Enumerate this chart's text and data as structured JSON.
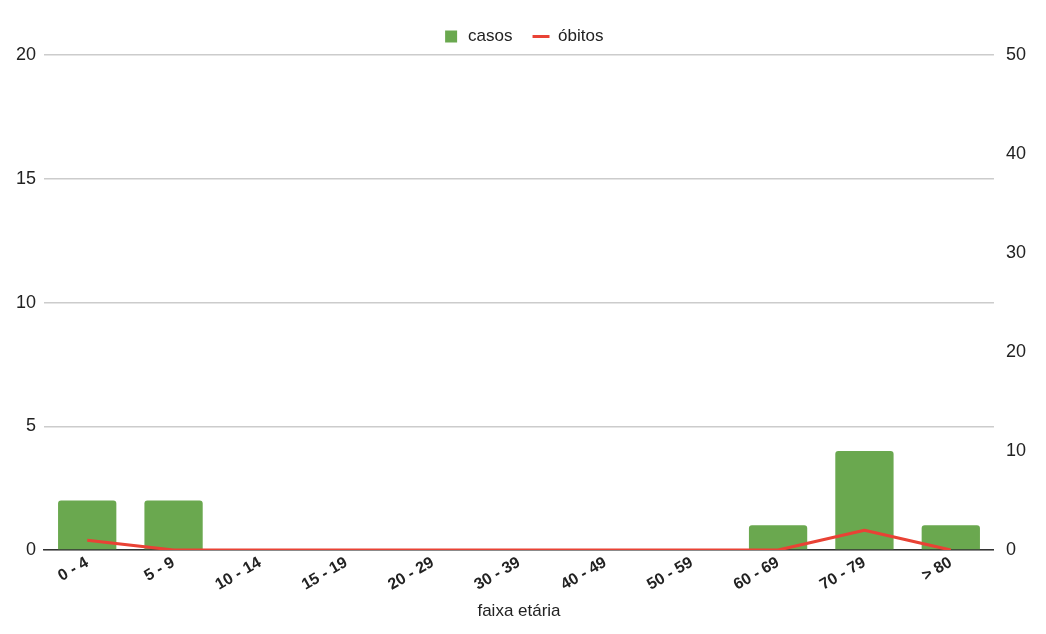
{
  "chart_data": {
    "type": "bar",
    "xlabel": "faixa etária",
    "categories": [
      "0 - 4",
      "5 - 9",
      "10 - 14",
      "15 - 19",
      "20 - 29",
      "30 - 39",
      "40 - 49",
      "50 - 59",
      "60 - 69",
      "70 - 79",
      "> 80"
    ],
    "series": [
      {
        "name": "casos",
        "color": "#6aa84f",
        "values": [
          2,
          2,
          0,
          0,
          0,
          0,
          0,
          0,
          1,
          4,
          1
        ]
      },
      {
        "name": "óbitos",
        "type": "line",
        "axis": "y2",
        "color": "#e94235",
        "values": [
          1,
          0,
          0,
          0,
          0,
          0,
          0,
          0,
          0,
          2,
          0
        ]
      }
    ],
    "ylim": [
      0,
      20
    ],
    "yticks": [
      0,
      5,
      10,
      15,
      20
    ],
    "y2lim": [
      0,
      50
    ],
    "y2ticks": [
      0,
      10,
      20,
      30,
      40,
      50
    ],
    "grid": "y",
    "legend": "top",
    "marker": "none",
    "line_style": "solid"
  }
}
